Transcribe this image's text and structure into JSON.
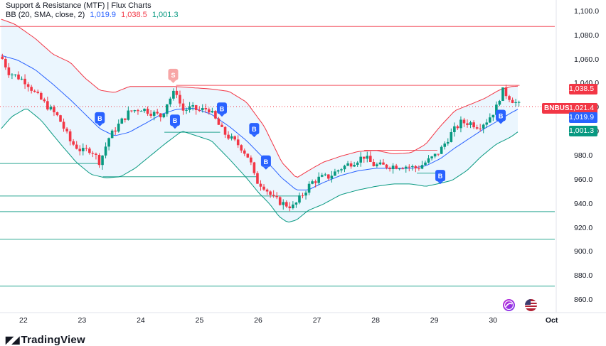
{
  "legend": {
    "title": "Support & Resistance (MTF) | Flux Charts",
    "bb_label": "BB (20, SMA, close, 2)",
    "bb_basis": "1,019.9",
    "bb_upper": "1,038.5",
    "bb_lower": "1,001.3"
  },
  "price_badges": {
    "upper": {
      "text": "1,038.5",
      "color": "#f23645"
    },
    "symbol": "BNBUSD",
    "price": {
      "text": "1,021.4",
      "color": "#f23645"
    },
    "basis": {
      "text": "1,019.9",
      "color": "#2962ff"
    },
    "lower": {
      "text": "1,001.3",
      "color": "#089981"
    }
  },
  "signal_labels": {
    "buy": "B",
    "sell": "S"
  },
  "brand": "TradingView",
  "chart_data": {
    "type": "candlestick",
    "symbol": "BNBUSD",
    "ylim": [
      850,
      1110
    ],
    "y_ticks": [
      860,
      880,
      900,
      920,
      940,
      960,
      980,
      1000,
      1020,
      1040,
      1060,
      1080,
      1100
    ],
    "y_tick_labels": [
      "860.0",
      "880.0",
      "900.0",
      "920.0",
      "940.0",
      "960.0",
      "980.0",
      "1,000.0",
      "1,020.0",
      "1,040.0",
      "1,060.0",
      "1,080.0",
      "1,100.0"
    ],
    "x_ticks": [
      22,
      23,
      24,
      25,
      26,
      27,
      28,
      29,
      30,
      31
    ],
    "x_tick_labels": [
      "22",
      "23",
      "24",
      "25",
      "26",
      "27",
      "28",
      "29",
      "30",
      "Oct"
    ],
    "xlim": [
      21.6,
      31.05
    ],
    "close_anchors": [
      [
        21.62,
        1063
      ],
      [
        21.75,
        1050
      ],
      [
        21.9,
        1046
      ],
      [
        22.05,
        1042
      ],
      [
        22.2,
        1032
      ],
      [
        22.4,
        1022
      ],
      [
        22.6,
        1012
      ],
      [
        22.8,
        992
      ],
      [
        23.0,
        984
      ],
      [
        23.15,
        986
      ],
      [
        23.3,
        975
      ],
      [
        23.45,
        995
      ],
      [
        23.6,
        1005
      ],
      [
        23.8,
        1017
      ],
      [
        24.0,
        1020
      ],
      [
        24.2,
        1016
      ],
      [
        24.35,
        1013
      ],
      [
        24.45,
        1025
      ],
      [
        24.6,
        1035
      ],
      [
        24.7,
        1018
      ],
      [
        24.85,
        1020
      ],
      [
        25.0,
        1018
      ],
      [
        25.15,
        1020
      ],
      [
        25.25,
        1012
      ],
      [
        25.4,
        1000
      ],
      [
        25.55,
        994
      ],
      [
        25.7,
        988
      ],
      [
        25.85,
        978
      ],
      [
        25.95,
        960
      ],
      [
        26.1,
        955
      ],
      [
        26.25,
        945
      ],
      [
        26.45,
        940
      ],
      [
        26.6,
        938
      ],
      [
        26.75,
        948
      ],
      [
        26.9,
        958
      ],
      [
        27.05,
        962
      ],
      [
        27.2,
        963
      ],
      [
        27.4,
        970
      ],
      [
        27.6,
        975
      ],
      [
        27.8,
        980
      ],
      [
        27.95,
        973
      ],
      [
        28.1,
        972
      ],
      [
        28.3,
        972
      ],
      [
        28.5,
        972
      ],
      [
        28.7,
        970
      ],
      [
        28.85,
        975
      ],
      [
        29.0,
        980
      ],
      [
        29.1,
        985
      ],
      [
        29.3,
        1000
      ],
      [
        29.45,
        1008
      ],
      [
        29.6,
        1008
      ],
      [
        29.75,
        1005
      ],
      [
        29.9,
        1010
      ],
      [
        30.05,
        1020
      ],
      [
        30.15,
        1035
      ],
      [
        30.3,
        1028
      ],
      [
        30.45,
        1022
      ]
    ],
    "bollinger": {
      "upper": [
        [
          21.62,
          1094
        ],
        [
          21.85,
          1090
        ],
        [
          22.2,
          1078
        ],
        [
          22.5,
          1065
        ],
        [
          22.8,
          1058
        ],
        [
          23.05,
          1045
        ],
        [
          23.3,
          1035
        ],
        [
          23.55,
          1033
        ],
        [
          23.8,
          1038
        ],
        [
          24.1,
          1038
        ],
        [
          24.35,
          1038
        ],
        [
          24.6,
          1038
        ],
        [
          24.9,
          1037
        ],
        [
          25.2,
          1036
        ],
        [
          25.5,
          1034
        ],
        [
          25.8,
          1025
        ],
        [
          26.1,
          1005
        ],
        [
          26.4,
          975
        ],
        [
          26.65,
          962
        ],
        [
          26.85,
          968
        ],
        [
          27.1,
          975
        ],
        [
          27.4,
          980
        ],
        [
          27.7,
          984
        ],
        [
          28.0,
          985
        ],
        [
          28.3,
          982
        ],
        [
          28.6,
          983
        ],
        [
          28.85,
          990
        ],
        [
          29.1,
          1005
        ],
        [
          29.35,
          1018
        ],
        [
          29.6,
          1023
        ],
        [
          29.85,
          1028
        ],
        [
          30.1,
          1035
        ],
        [
          30.3,
          1038
        ],
        [
          30.45,
          1038.5
        ]
      ],
      "basis": [
        [
          21.62,
          1064
        ],
        [
          21.9,
          1060
        ],
        [
          22.2,
          1052
        ],
        [
          22.5,
          1040
        ],
        [
          22.8,
          1027
        ],
        [
          23.05,
          1015
        ],
        [
          23.3,
          1003
        ],
        [
          23.55,
          997
        ],
        [
          23.8,
          1000
        ],
        [
          24.1,
          1008
        ],
        [
          24.35,
          1015
        ],
        [
          24.6,
          1019
        ],
        [
          24.9,
          1020
        ],
        [
          25.2,
          1015
        ],
        [
          25.5,
          1005
        ],
        [
          25.8,
          993
        ],
        [
          26.1,
          978
        ],
        [
          26.4,
          962
        ],
        [
          26.65,
          952
        ],
        [
          26.85,
          952
        ],
        [
          27.1,
          958
        ],
        [
          27.4,
          964
        ],
        [
          27.7,
          968
        ],
        [
          28.0,
          970
        ],
        [
          28.3,
          970
        ],
        [
          28.6,
          970
        ],
        [
          28.85,
          972
        ],
        [
          29.1,
          978
        ],
        [
          29.35,
          987
        ],
        [
          29.6,
          995
        ],
        [
          29.85,
          1003
        ],
        [
          30.1,
          1010
        ],
        [
          30.3,
          1016
        ],
        [
          30.45,
          1019.9
        ]
      ],
      "lower": [
        [
          21.62,
          1003
        ],
        [
          21.8,
          1013
        ],
        [
          22.05,
          1020
        ],
        [
          22.3,
          1010
        ],
        [
          22.6,
          992
        ],
        [
          22.9,
          975
        ],
        [
          23.15,
          965
        ],
        [
          23.4,
          962
        ],
        [
          23.65,
          963
        ],
        [
          23.9,
          970
        ],
        [
          24.15,
          980
        ],
        [
          24.4,
          990
        ],
        [
          24.7,
          1001
        ],
        [
          24.95,
          997
        ],
        [
          25.2,
          993
        ],
        [
          25.5,
          978
        ],
        [
          25.8,
          962
        ],
        [
          26.0,
          950
        ],
        [
          26.2,
          940
        ],
        [
          26.35,
          930
        ],
        [
          26.5,
          925
        ],
        [
          26.65,
          927
        ],
        [
          26.85,
          935
        ],
        [
          27.1,
          940
        ],
        [
          27.4,
          948
        ],
        [
          27.7,
          952
        ],
        [
          28.0,
          955
        ],
        [
          28.3,
          957
        ],
        [
          28.6,
          957
        ],
        [
          28.85,
          955
        ],
        [
          29.05,
          957
        ],
        [
          29.3,
          960
        ],
        [
          29.55,
          968
        ],
        [
          29.8,
          980
        ],
        [
          30.05,
          990
        ],
        [
          30.3,
          996
        ],
        [
          30.45,
          1001.3
        ]
      ]
    },
    "resistance_levels": [
      {
        "price": 1088,
        "x_from": 21.6,
        "x_to": 31.05
      },
      {
        "price": 1039,
        "x_from": 24.6,
        "x_to": 30.45
      },
      {
        "price": 985,
        "x_from": 27.8,
        "x_to": 29.05
      }
    ],
    "support_levels": [
      {
        "price": 974,
        "x_from": 21.6,
        "x_to": 23.3
      },
      {
        "price": 963,
        "x_from": 23.35,
        "x_to": 26.0
      },
      {
        "price": 1000,
        "x_from": 24.4,
        "x_to": 25.35
      },
      {
        "price": 947,
        "x_from": 21.6,
        "x_to": 26.7
      },
      {
        "price": 934,
        "x_from": 21.6,
        "x_to": 31.05
      },
      {
        "price": 911,
        "x_from": 21.6,
        "x_to": 31.05
      },
      {
        "price": 872,
        "x_from": 21.6,
        "x_to": 31.05
      },
      {
        "price": 966,
        "x_from": 28.7,
        "x_to": 29.1
      }
    ],
    "current_price": 1021.4,
    "signals": [
      {
        "type": "buy",
        "x": 23.3,
        "price": 1012
      },
      {
        "type": "sell",
        "x": 24.55,
        "price": 1048
      },
      {
        "type": "buy",
        "x": 24.58,
        "price": 1010
      },
      {
        "type": "buy",
        "x": 25.38,
        "price": 1020
      },
      {
        "type": "buy",
        "x": 25.93,
        "price": 1003
      },
      {
        "type": "buy",
        "x": 26.13,
        "price": 976
      },
      {
        "type": "buy",
        "x": 29.1,
        "price": 964
      },
      {
        "type": "buy",
        "x": 30.13,
        "price": 1014
      }
    ]
  }
}
